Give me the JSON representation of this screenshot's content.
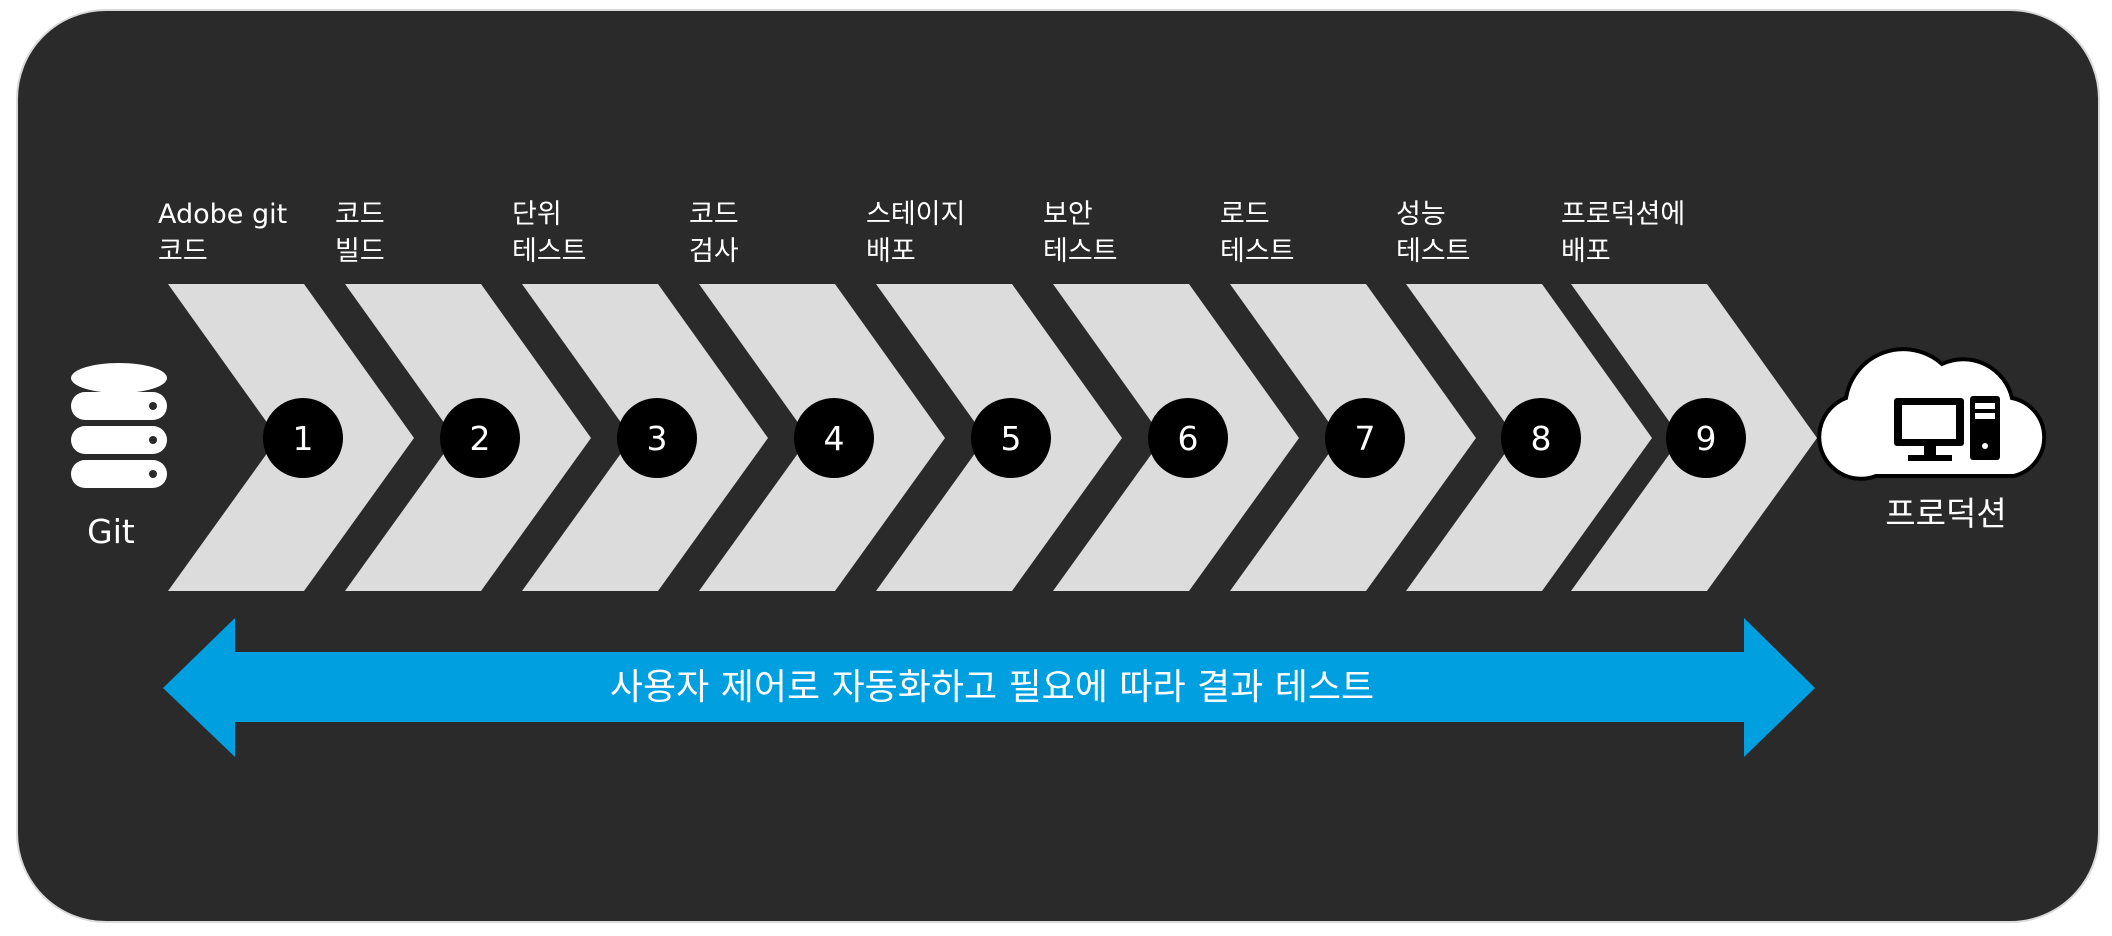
{
  "source": {
    "label": "Git",
    "icon": "database-icon"
  },
  "target": {
    "label": "프로덕션",
    "icon": "cloud-computer-icon"
  },
  "steps": [
    {
      "number": "1",
      "line1": "Adobe git",
      "line2": "코드"
    },
    {
      "number": "2",
      "line1": "코드",
      "line2": "빌드"
    },
    {
      "number": "3",
      "line1": "단위",
      "line2": "테스트"
    },
    {
      "number": "4",
      "line1": "코드",
      "line2": "검사"
    },
    {
      "number": "5",
      "line1": "스테이지",
      "line2": "배포"
    },
    {
      "number": "6",
      "line1": "보안",
      "line2": "테스트"
    },
    {
      "number": "7",
      "line1": "로드",
      "line2": "테스트"
    },
    {
      "number": "8",
      "line1": "성능",
      "line2": "테스트"
    },
    {
      "number": "9",
      "line1": "프로덕션에",
      "line2": "배포"
    }
  ],
  "banner": {
    "text": "사용자 제어로 자동화하고 필요에 따라 결과 테스트"
  },
  "colors": {
    "background": "#2a2a2a",
    "chevron": "#dcdcdc",
    "circle": "#000000",
    "arrow": "#009fe0",
    "text": "#ffffff"
  }
}
